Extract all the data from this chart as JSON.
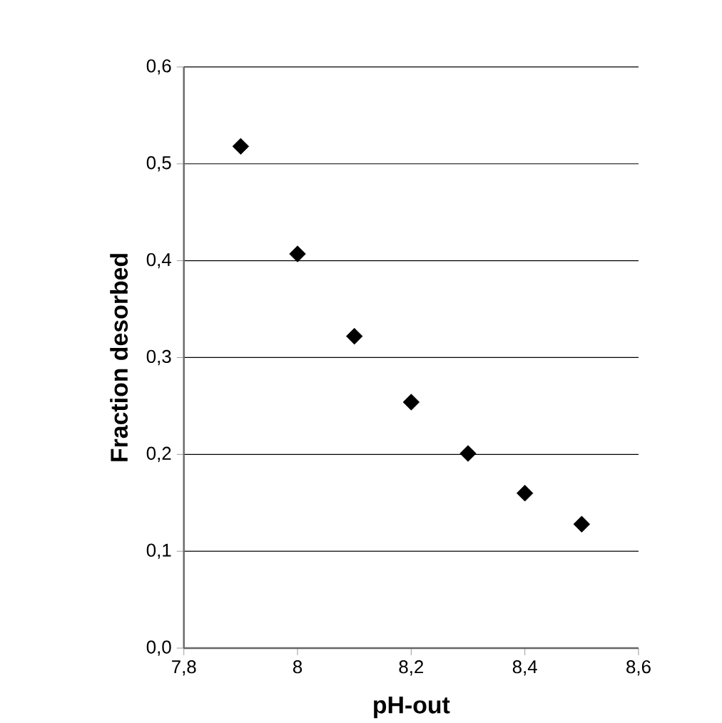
{
  "chart_data": {
    "type": "scatter",
    "xlabel": "pH-out",
    "ylabel": "Fraction desorbed",
    "x": [
      7.9,
      8.0,
      8.1,
      8.2,
      8.3,
      8.4,
      8.5
    ],
    "series": [
      {
        "color": "#000000",
        "values": [
          0.518,
          0.407,
          0.322,
          0.254,
          0.201,
          0.16,
          0.128
        ]
      }
    ],
    "xlim": [
      7.8,
      8.6
    ],
    "ylim": [
      0,
      0.6
    ],
    "xticks": [
      {
        "value": 7.8,
        "label": "7,8"
      },
      8,
      {
        "value": 8.2,
        "label": "8,2"
      },
      {
        "value": 8.4,
        "label": "8,4"
      },
      {
        "value": 8.6,
        "label": "8,6"
      }
    ],
    "yticks": [
      {
        "value": 0,
        "label": "0,0"
      },
      {
        "value": 0.1,
        "label": "0,1"
      },
      {
        "value": 0.2,
        "label": "0,2"
      },
      {
        "value": 0.3,
        "label": "0,3"
      },
      {
        "value": 0.4,
        "label": "0,4"
      },
      {
        "value": 0.5,
        "label": "0,5"
      },
      {
        "value": 0.6,
        "label": "0,6"
      }
    ],
    "grid": "y",
    "marker": "diamond"
  }
}
